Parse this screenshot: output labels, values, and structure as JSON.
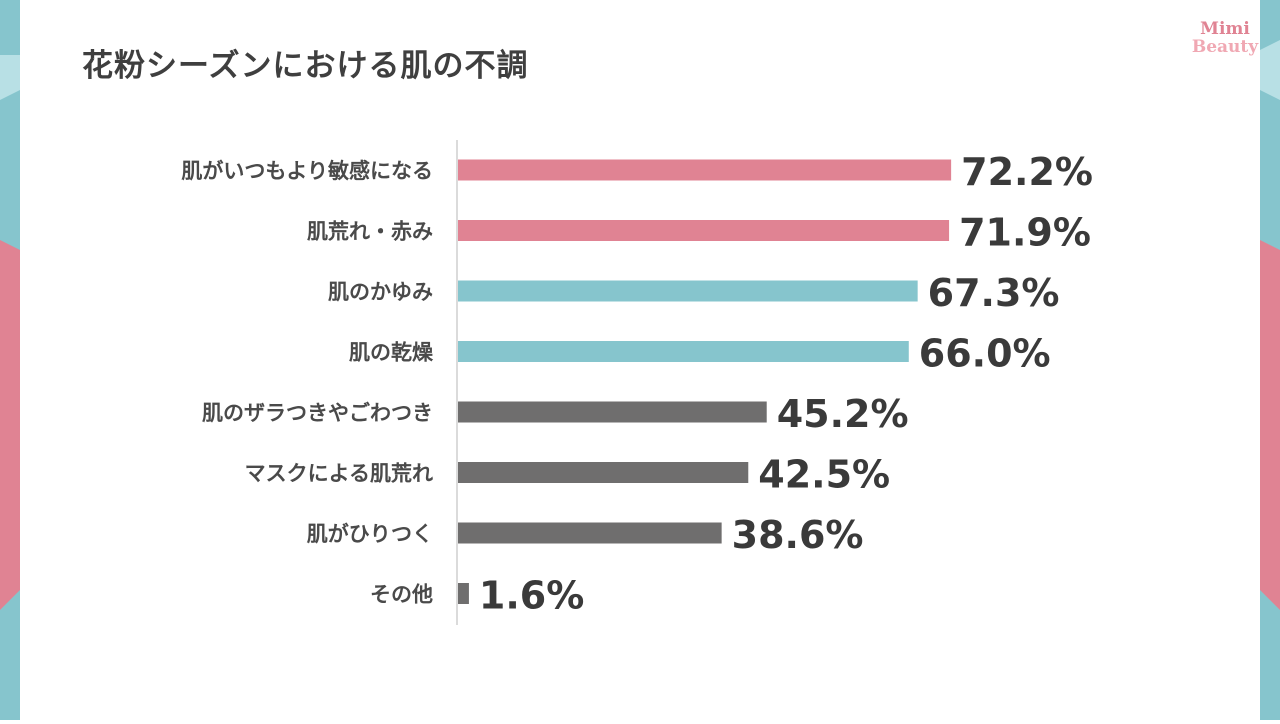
{
  "logo": {
    "line1": "Mimi",
    "line2": "Beauty"
  },
  "colors": {
    "pink": "#e08393",
    "teal": "#86c5cd",
    "gray": "#6f6e6e",
    "axis": "#cfcfcf",
    "side_teal": "#86c5cd",
    "side_pink": "#e08393"
  },
  "chart_data": {
    "type": "bar",
    "orientation": "horizontal",
    "title": "花粉シーズンにおける肌の不調",
    "categories": [
      "肌がいつもより敏感になる",
      "肌荒れ・赤み",
      "肌のかゆみ",
      "肌の乾燥",
      "肌のザラつきやごわつき",
      "マスクによる肌荒れ",
      "肌がひりつく",
      "その他"
    ],
    "values": [
      72.2,
      71.9,
      67.3,
      66.0,
      45.2,
      42.5,
      38.6,
      1.6
    ],
    "value_labels": [
      "72.2%",
      "71.9%",
      "67.3%",
      "66.0%",
      "45.2%",
      "42.5%",
      "38.6%",
      "1.6%"
    ],
    "bar_colors": [
      "pink",
      "pink",
      "teal",
      "teal",
      "gray",
      "gray",
      "gray",
      "gray"
    ],
    "unit": "%",
    "xlim": [
      0,
      100
    ],
    "grid": false,
    "legend": "none"
  }
}
